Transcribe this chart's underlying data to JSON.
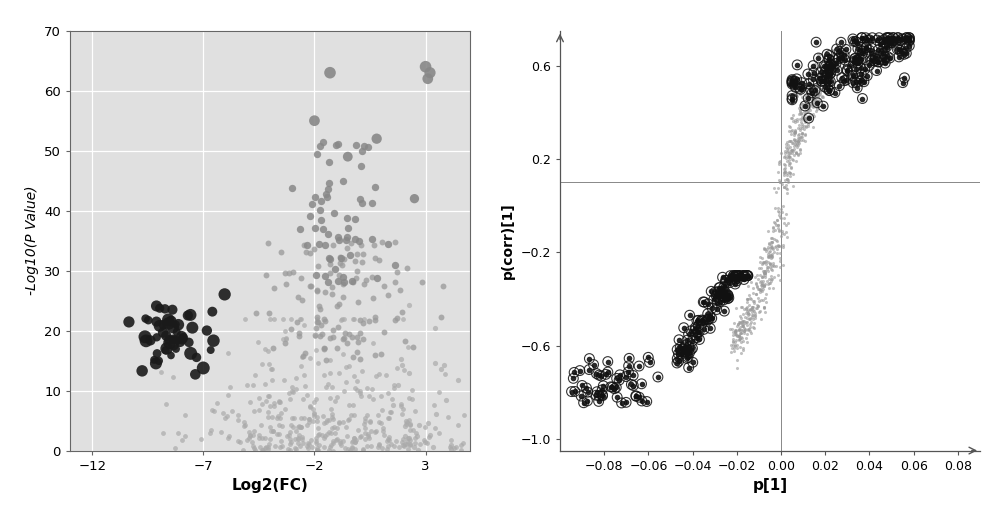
{
  "volcano": {
    "xlim": [
      -13,
      5
    ],
    "ylim": [
      0,
      70
    ],
    "xticks": [
      -12,
      -7,
      -2,
      3
    ],
    "yticks": [
      0,
      10,
      20,
      30,
      40,
      50,
      60,
      70
    ],
    "xlabel": "Log2(FC)",
    "ylabel": "-Log10(P Value)",
    "bg_color": "#e0e0e0"
  },
  "scatter": {
    "xlim": [
      -0.1,
      0.09
    ],
    "ylim": [
      -1.05,
      0.75
    ],
    "xticks": [
      -0.08,
      -0.06,
      -0.04,
      -0.02,
      0.0,
      0.02,
      0.04,
      0.06,
      0.08
    ],
    "yticks": [
      -1.0,
      -0.6,
      -0.2,
      0.2,
      0.6
    ],
    "xlabel": "p[1]",
    "ylabel": "p(corr)[1]",
    "hline": 0.1,
    "vline": 0.0
  }
}
